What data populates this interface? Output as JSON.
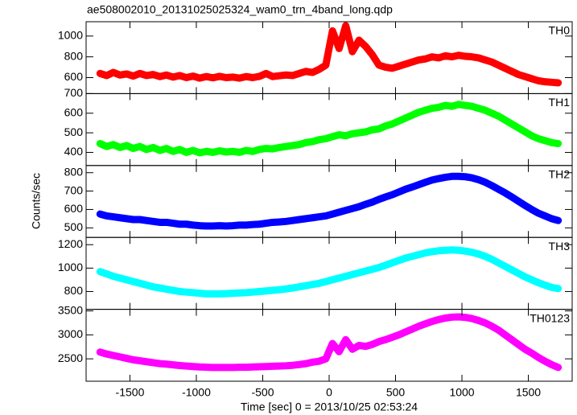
{
  "chart_data": [
    {
      "type": "line",
      "title": "ae508002010_20131025025324_wam0_trn_4band_long.qdp",
      "ylabel": "Counts/sec",
      "x": [
        -1725,
        -1675,
        -1625,
        -1575,
        -1525,
        -1475,
        -1425,
        -1375,
        -1325,
        -1275,
        -1225,
        -1175,
        -1125,
        -1075,
        -1025,
        -975,
        -925,
        -875,
        -825,
        -775,
        -725,
        -675,
        -625,
        -575,
        -525,
        -475,
        -425,
        -375,
        -325,
        -275,
        -225,
        -175,
        -125,
        -75,
        -25,
        25,
        75,
        125,
        175,
        225,
        275,
        325,
        375,
        425,
        475,
        525,
        575,
        625,
        675,
        725,
        775,
        825,
        875,
        925,
        975,
        1025,
        1075,
        1125,
        1175,
        1225,
        1275,
        1325,
        1375,
        1425,
        1475,
        1525,
        1575,
        1625,
        1675,
        1725
      ],
      "series": [
        {
          "name": "TH0",
          "color": "#ff0000",
          "values": [
            640,
            620,
            650,
            625,
            635,
            615,
            640,
            620,
            630,
            610,
            625,
            605,
            620,
            600,
            615,
            595,
            610,
            598,
            612,
            600,
            605,
            595,
            610,
            600,
            612,
            640,
            610,
            618,
            625,
            620,
            640,
            660,
            650,
            680,
            720,
            1050,
            880,
            1100,
            850,
            960,
            900,
            820,
            720,
            700,
            690,
            710,
            730,
            750,
            770,
            780,
            800,
            790,
            810,
            800,
            815,
            805,
            800,
            790,
            770,
            750,
            720,
            690,
            660,
            630,
            610,
            590,
            570,
            560,
            555,
            550
          ]
        }
      ],
      "xlim": [
        -1830,
        1830
      ],
      "xticks": [
        -1500,
        -1000,
        -500,
        0,
        500,
        1000,
        1500
      ],
      "ylim": [
        446,
        1138
      ],
      "yticks": [
        600,
        800,
        1000
      ]
    },
    {
      "type": "line",
      "x": [
        -1725,
        -1675,
        -1625,
        -1575,
        -1525,
        -1475,
        -1425,
        -1375,
        -1325,
        -1275,
        -1225,
        -1175,
        -1125,
        -1075,
        -1025,
        -975,
        -925,
        -875,
        -825,
        -775,
        -725,
        -675,
        -625,
        -575,
        -525,
        -475,
        -425,
        -375,
        -325,
        -275,
        -225,
        -175,
        -125,
        -75,
        -25,
        25,
        75,
        125,
        175,
        225,
        275,
        325,
        375,
        425,
        475,
        525,
        575,
        625,
        675,
        725,
        775,
        825,
        875,
        925,
        975,
        1025,
        1075,
        1125,
        1175,
        1225,
        1275,
        1325,
        1375,
        1425,
        1475,
        1525,
        1575,
        1625,
        1675,
        1725
      ],
      "series": [
        {
          "name": "TH1",
          "color": "#00ff00",
          "values": [
            445,
            430,
            440,
            425,
            435,
            420,
            430,
            415,
            425,
            410,
            420,
            405,
            415,
            400,
            410,
            398,
            405,
            400,
            408,
            402,
            405,
            400,
            410,
            405,
            415,
            420,
            418,
            425,
            430,
            435,
            440,
            450,
            455,
            465,
            470,
            480,
            490,
            485,
            495,
            500,
            505,
            515,
            520,
            535,
            545,
            560,
            575,
            590,
            605,
            615,
            625,
            630,
            640,
            635,
            645,
            640,
            635,
            625,
            615,
            600,
            585,
            565,
            545,
            525,
            505,
            485,
            470,
            460,
            450,
            445
          ]
        }
      ],
      "xlim": [
        -1830,
        1830
      ],
      "xticks": [
        -1500,
        -1000,
        -500,
        0,
        500,
        1000,
        1500
      ],
      "ylim": [
        333,
        700
      ],
      "yticks": [
        400,
        500,
        600,
        700
      ]
    },
    {
      "type": "line",
      "x": [
        -1725,
        -1675,
        -1625,
        -1575,
        -1525,
        -1475,
        -1425,
        -1375,
        -1325,
        -1275,
        -1225,
        -1175,
        -1125,
        -1075,
        -1025,
        -975,
        -925,
        -875,
        -825,
        -775,
        -725,
        -675,
        -625,
        -575,
        -525,
        -475,
        -425,
        -375,
        -325,
        -275,
        -225,
        -175,
        -125,
        -75,
        -25,
        25,
        75,
        125,
        175,
        225,
        275,
        325,
        375,
        425,
        475,
        525,
        575,
        625,
        675,
        725,
        775,
        825,
        875,
        925,
        975,
        1025,
        1075,
        1125,
        1175,
        1225,
        1275,
        1325,
        1375,
        1425,
        1475,
        1525,
        1575,
        1625,
        1675,
        1725
      ],
      "series": [
        {
          "name": "TH2",
          "color": "#0000ff",
          "values": [
            575,
            565,
            560,
            555,
            550,
            545,
            545,
            540,
            535,
            530,
            530,
            525,
            520,
            520,
            515,
            512,
            510,
            510,
            512,
            510,
            512,
            515,
            515,
            518,
            520,
            525,
            530,
            532,
            535,
            540,
            545,
            550,
            555,
            560,
            565,
            575,
            585,
            595,
            605,
            615,
            628,
            640,
            655,
            668,
            680,
            695,
            710,
            722,
            735,
            748,
            760,
            768,
            775,
            780,
            780,
            778,
            772,
            762,
            748,
            730,
            710,
            690,
            668,
            645,
            622,
            600,
            580,
            565,
            550,
            540
          ]
        }
      ],
      "xlim": [
        -1830,
        1830
      ],
      "xticks": [
        -1500,
        -1000,
        -500,
        0,
        500,
        1000,
        1500
      ],
      "ylim": [
        448,
        839
      ],
      "yticks": [
        500,
        600,
        700,
        800
      ]
    },
    {
      "type": "line",
      "x": [
        -1725,
        -1675,
        -1625,
        -1575,
        -1525,
        -1475,
        -1425,
        -1375,
        -1325,
        -1275,
        -1225,
        -1175,
        -1125,
        -1075,
        -1025,
        -975,
        -925,
        -875,
        -825,
        -775,
        -725,
        -675,
        -625,
        -575,
        -525,
        -475,
        -425,
        -375,
        -325,
        -275,
        -225,
        -175,
        -125,
        -75,
        -25,
        25,
        75,
        125,
        175,
        225,
        275,
        325,
        375,
        425,
        475,
        525,
        575,
        625,
        675,
        725,
        775,
        825,
        875,
        925,
        975,
        1025,
        1075,
        1125,
        1175,
        1225,
        1275,
        1325,
        1375,
        1425,
        1475,
        1525,
        1575,
        1625,
        1675,
        1725
      ],
      "series": [
        {
          "name": "TH3",
          "color": "#00ffff",
          "values": [
            970,
            950,
            930,
            915,
            900,
            885,
            870,
            855,
            840,
            830,
            820,
            810,
            800,
            795,
            790,
            785,
            780,
            780,
            780,
            782,
            785,
            788,
            790,
            795,
            800,
            805,
            810,
            815,
            822,
            830,
            840,
            850,
            860,
            870,
            885,
            900,
            915,
            930,
            945,
            960,
            975,
            990,
            1005,
            1025,
            1045,
            1065,
            1085,
            1100,
            1115,
            1130,
            1140,
            1148,
            1152,
            1155,
            1152,
            1145,
            1135,
            1120,
            1100,
            1075,
            1045,
            1015,
            985,
            955,
            925,
            900,
            875,
            855,
            835,
            825
          ]
        }
      ],
      "xlim": [
        -1830,
        1830
      ],
      "xticks": [
        -1500,
        -1000,
        -500,
        0,
        500,
        1000,
        1500
      ],
      "ylim": [
        648,
        1262
      ],
      "yticks": [
        800,
        1000,
        1200
      ]
    },
    {
      "type": "line",
      "xlabel": "Time [sec] 0 = 2013/10/25 02:53:24",
      "x": [
        -1725,
        -1675,
        -1625,
        -1575,
        -1525,
        -1475,
        -1425,
        -1375,
        -1325,
        -1275,
        -1225,
        -1175,
        -1125,
        -1075,
        -1025,
        -975,
        -925,
        -875,
        -825,
        -775,
        -725,
        -675,
        -625,
        -575,
        -525,
        -475,
        -425,
        -375,
        -325,
        -275,
        -225,
        -175,
        -125,
        -75,
        -25,
        25,
        75,
        125,
        175,
        225,
        275,
        325,
        375,
        425,
        475,
        525,
        575,
        625,
        675,
        725,
        775,
        825,
        875,
        925,
        975,
        1025,
        1075,
        1125,
        1175,
        1225,
        1275,
        1325,
        1375,
        1425,
        1475,
        1525,
        1575,
        1625,
        1675,
        1725
      ],
      "series": [
        {
          "name": "TH0123",
          "color": "#ff00ff",
          "values": [
            2640,
            2600,
            2570,
            2540,
            2510,
            2480,
            2460,
            2440,
            2420,
            2400,
            2390,
            2375,
            2360,
            2350,
            2340,
            2330,
            2325,
            2320,
            2320,
            2320,
            2320,
            2325,
            2325,
            2330,
            2335,
            2340,
            2345,
            2350,
            2355,
            2365,
            2380,
            2400,
            2430,
            2450,
            2500,
            2820,
            2650,
            2900,
            2700,
            2780,
            2760,
            2800,
            2860,
            2900,
            2950,
            3000,
            3060,
            3120,
            3180,
            3230,
            3280,
            3320,
            3350,
            3370,
            3375,
            3365,
            3340,
            3300,
            3250,
            3180,
            3100,
            3000,
            2900,
            2800,
            2700,
            2620,
            2530,
            2450,
            2380,
            2320
          ]
        }
      ],
      "xlim": [
        -1830,
        1830
      ],
      "xticks": [
        -1500,
        -1000,
        -500,
        0,
        500,
        1000,
        1500
      ],
      "ylim": [
        2033,
        3533
      ],
      "yticks": [
        2500,
        3000,
        3500
      ]
    }
  ]
}
